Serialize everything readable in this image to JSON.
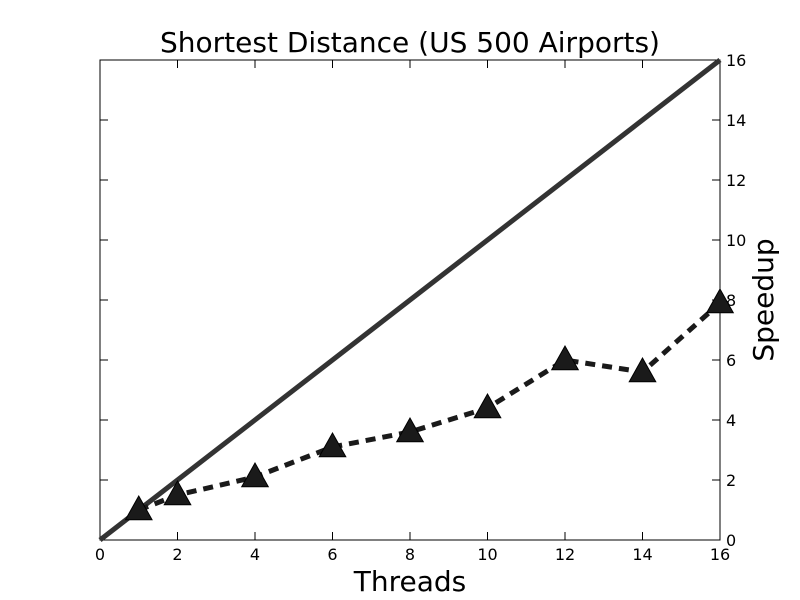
{
  "chart_data": {
    "type": "line",
    "title": "Shortest Distance (US 500 Airports)",
    "xlabel": "Threads",
    "ylabel": "Speedup",
    "xlim": [
      0,
      16
    ],
    "ylim": [
      0,
      16
    ],
    "x_ticks": [
      0,
      2,
      4,
      6,
      8,
      10,
      12,
      14,
      16
    ],
    "y_ticks": [
      0,
      2,
      4,
      6,
      8,
      10,
      12,
      14,
      16
    ],
    "y_axis_side": "right",
    "grid": false,
    "legend": "none",
    "series": [
      {
        "style": "solid",
        "color": "#333333",
        "x": [
          0,
          16
        ],
        "y": [
          0,
          16
        ]
      },
      {
        "style": "dashed",
        "marker": "triangle",
        "color": "#1a1a1a",
        "x": [
          1,
          2,
          4,
          6,
          8,
          10,
          12,
          14,
          16
        ],
        "y": [
          1.0,
          1.5,
          2.1,
          3.1,
          3.6,
          4.4,
          6.0,
          5.6,
          7.9
        ]
      }
    ]
  }
}
